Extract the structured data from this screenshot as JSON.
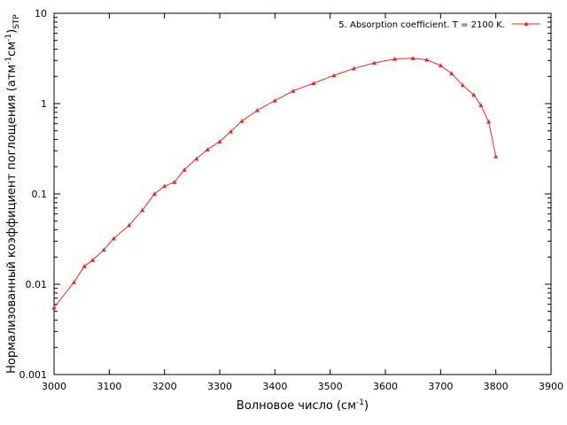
{
  "chart_data": {
    "type": "line",
    "xlabel_main": "Волновое число (см",
    "xlabel_sup": "-1",
    "xlabel_end": ")",
    "ylabel_main": "Нормализованный коэффициент поглощения (атм",
    "ylabel_sup1": "-1",
    "ylabel_mid": "см",
    "ylabel_sup2": "-1",
    "ylabel_end": ")",
    "ylabel_sub": "STP",
    "xlim": [
      3000,
      3900
    ],
    "ylim": [
      0.001,
      10
    ],
    "yscale": "log",
    "grid": false,
    "legend_position": "top-right",
    "x_ticks": [
      {
        "value": 3000,
        "label": "3000"
      },
      {
        "value": 3100,
        "label": "3100"
      },
      {
        "value": 3200,
        "label": "3200"
      },
      {
        "value": 3300,
        "label": "3300"
      },
      {
        "value": 3400,
        "label": "3400"
      },
      {
        "value": 3500,
        "label": "3500"
      },
      {
        "value": 3600,
        "label": "3600"
      },
      {
        "value": 3700,
        "label": "3700"
      },
      {
        "value": 3800,
        "label": "3800"
      },
      {
        "value": 3900,
        "label": "3900"
      }
    ],
    "y_ticks": [
      {
        "value": 0.001,
        "label": "0.001"
      },
      {
        "value": 0.01,
        "label": "0.01"
      },
      {
        "value": 0.1,
        "label": "0.1"
      },
      {
        "value": 1,
        "label": "1"
      },
      {
        "value": 10,
        "label": "10"
      }
    ],
    "series": [
      {
        "name": "5. Absorption coefficient. T = 2100 K.",
        "color": "#e8281e",
        "marker": "triangle",
        "x": [
          3000,
          3036,
          3055,
          3070,
          3090,
          3108,
          3136,
          3160,
          3182,
          3200,
          3218,
          3236,
          3258,
          3278,
          3300,
          3320,
          3340,
          3368,
          3400,
          3433,
          3470,
          3507,
          3543,
          3580,
          3617,
          3650,
          3675,
          3700,
          3720,
          3740,
          3760,
          3773,
          3787,
          3800
        ],
        "y": [
          0.0055,
          0.0105,
          0.0158,
          0.0185,
          0.024,
          0.032,
          0.045,
          0.066,
          0.1,
          0.122,
          0.135,
          0.185,
          0.245,
          0.31,
          0.38,
          0.49,
          0.64,
          0.84,
          1.08,
          1.38,
          1.68,
          2.05,
          2.45,
          2.82,
          3.12,
          3.18,
          3.05,
          2.65,
          2.15,
          1.6,
          1.25,
          0.96,
          0.63,
          0.26
        ]
      }
    ]
  }
}
